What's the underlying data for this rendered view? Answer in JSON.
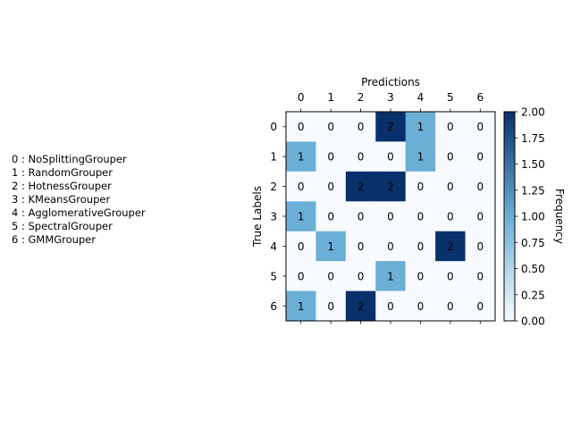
{
  "chart_data": {
    "type": "heatmap",
    "xlabel": "Predictions",
    "ylabel": "True Labels",
    "x_ticks": [
      "0",
      "1",
      "2",
      "3",
      "4",
      "5",
      "6"
    ],
    "y_ticks": [
      "0",
      "1",
      "2",
      "3",
      "4",
      "5",
      "6"
    ],
    "matrix": [
      [
        0,
        0,
        0,
        2,
        1,
        0,
        0
      ],
      [
        1,
        0,
        0,
        0,
        1,
        0,
        0
      ],
      [
        0,
        0,
        2,
        2,
        0,
        0,
        0
      ],
      [
        1,
        0,
        0,
        0,
        0,
        0,
        0
      ],
      [
        0,
        1,
        0,
        0,
        0,
        2,
        0
      ],
      [
        0,
        0,
        0,
        1,
        0,
        0,
        0
      ],
      [
        1,
        0,
        2,
        0,
        0,
        0,
        0
      ]
    ],
    "colorbar": {
      "label": "Frequency",
      "range": [
        0,
        2
      ],
      "ticks": [
        "0.00",
        "0.25",
        "0.50",
        "0.75",
        "1.00",
        "1.25",
        "1.50",
        "1.75",
        "2.00"
      ],
      "colormap": "Blues",
      "colors": {
        "low": "#f7fbff",
        "mid": "#6baed6",
        "high": "#08306b"
      }
    },
    "legend": [
      "0 : NoSplittingGrouper",
      "1 : RandomGrouper",
      "2 : HotnessGrouper",
      "3 : KMeansGrouper",
      "4 : AgglomerativeGrouper",
      "5 : SpectralGrouper",
      "6 : GMMGrouper"
    ]
  }
}
